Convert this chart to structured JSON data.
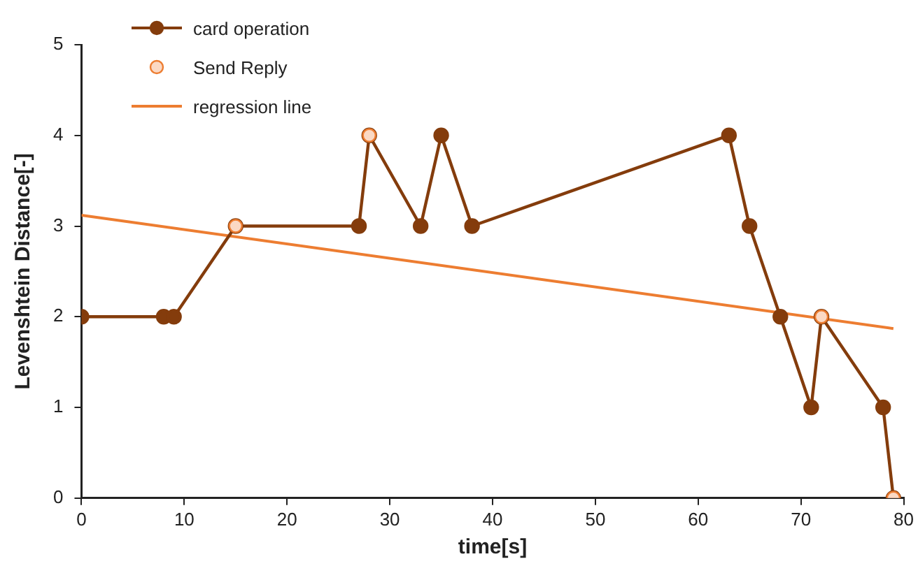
{
  "chart_data": {
    "type": "line",
    "xlabel": "time[s]",
    "ylabel": "Levenshtein Distance[-]",
    "xlim": [
      0,
      80
    ],
    "xticks": [
      0,
      10,
      20,
      30,
      40,
      50,
      60,
      70,
      80
    ],
    "ylim": [
      0,
      5
    ],
    "yticks": [
      0,
      1,
      2,
      3,
      4,
      5
    ],
    "grid": false,
    "legend": "top left",
    "series": [
      {
        "name": "card operation",
        "type": "line",
        "marker": "circle",
        "color": "#843c0c",
        "x": [
          0,
          8,
          9,
          15,
          27,
          28,
          33,
          35,
          38,
          63,
          65,
          68,
          71,
          72,
          78,
          79
        ],
        "values": [
          2,
          2,
          2,
          3,
          3,
          4,
          3,
          4,
          3,
          4,
          3,
          2,
          1,
          2,
          1,
          0
        ]
      },
      {
        "name": "Send Reply",
        "type": "scatter",
        "marker": "circle",
        "color": "#ed7d31",
        "x": [
          15,
          28,
          72,
          79
        ],
        "values": [
          3,
          4,
          2,
          0
        ]
      },
      {
        "name": "regression line",
        "type": "line",
        "marker": "none",
        "color": "#ed7d31",
        "x": [
          0,
          79
        ],
        "values": [
          3.12,
          1.87
        ]
      }
    ]
  }
}
